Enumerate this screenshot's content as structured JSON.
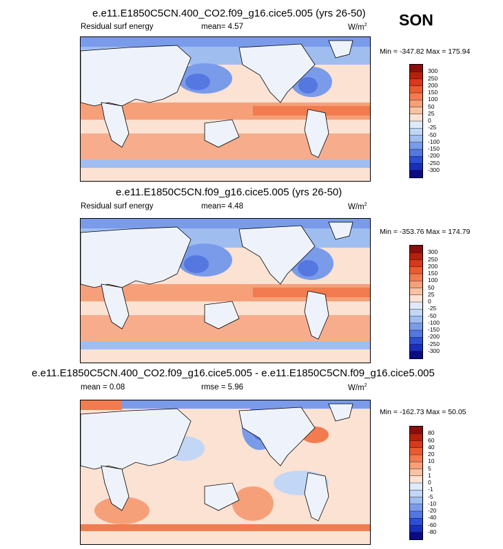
{
  "season": "SON",
  "panels": [
    {
      "title": "e.e11.E1850C5CN.400_CO2.f09_g16.cice5.005 (yrs 26-50)",
      "left_label": "Residual surf energy",
      "stat1": "mean=   4.57",
      "units": "W/m",
      "units_sup": "2",
      "minmax": "Min = -347.82 Max = 175.94",
      "levels": [
        "300",
        "250",
        "200",
        "150",
        "100",
        "50",
        "25",
        "0",
        "-25",
        "-50",
        "-100",
        "-150",
        "-200",
        "-250",
        "-300"
      ]
    },
    {
      "title": "e.e11.E1850C5CN.f09_g16.cice5.005 (yrs 26-50)",
      "left_label": "Residual surf energy",
      "stat1": "mean=   4.48",
      "units": "W/m",
      "units_sup": "2",
      "minmax": "Min = -353.76 Max = 174.79",
      "levels": [
        "300",
        "250",
        "200",
        "150",
        "100",
        "50",
        "25",
        "0",
        "-25",
        "-50",
        "-100",
        "-150",
        "-200",
        "-250",
        "-300"
      ]
    },
    {
      "title": "e.e11.E1850C5CN.400_CO2.f09_g16.cice5.005 - e.e11.E1850C5CN.f09_g16.cice5.005",
      "left_label": "mean =   0.08",
      "stat1": "rmse =   5.96",
      "units": "W/m",
      "units_sup": "2",
      "minmax": "Min = -162.73 Max =  50.05",
      "levels": [
        "80",
        "60",
        "40",
        "20",
        "10",
        "5",
        "1",
        "0",
        "-1",
        "-5",
        "-10",
        "-20",
        "-40",
        "-60",
        "-80"
      ]
    }
  ],
  "colorbar_colors": [
    "#8b0d0d",
    "#b5200b",
    "#d8381b",
    "#ea5b32",
    "#f27c4f",
    "#f6a07a",
    "#f8c2a4",
    "#fbe2d3",
    "#dfeaf8",
    "#c2d6f5",
    "#a0bdf0",
    "#7a9bea",
    "#5577e0",
    "#2e4ed3",
    "#1a2fb8",
    "#0b0b82"
  ]
}
